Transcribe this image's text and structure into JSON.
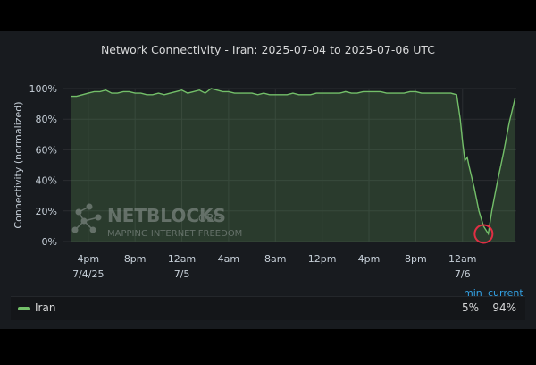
{
  "chart_data": {
    "type": "area",
    "title": "Network Connectivity - Iran: 2025-07-04 to 2025-07-06 UTC",
    "xlabel": "",
    "ylabel": "Connectivity (normalized)",
    "x_tick_labels": [
      [
        "4pm",
        "7/4/25"
      ],
      [
        "8pm",
        ""
      ],
      [
        "12am",
        "7/5"
      ],
      [
        "4am",
        ""
      ],
      [
        "8am",
        ""
      ],
      [
        "12pm",
        ""
      ],
      [
        "4pm",
        ""
      ],
      [
        "8pm",
        ""
      ],
      [
        "12am",
        "7/6"
      ]
    ],
    "y_tick_labels": [
      "0%",
      "20%",
      "40%",
      "60%",
      "80%",
      "100%"
    ],
    "ylim": [
      0,
      100
    ],
    "grid": true,
    "series": [
      {
        "name": "Iran",
        "color": "#73bf69",
        "x_hours": [
          -1.5,
          -1,
          -0.5,
          0,
          0.5,
          1,
          1.5,
          2,
          2.5,
          3,
          3.5,
          4,
          4.5,
          5,
          5.5,
          6,
          6.5,
          7,
          7.5,
          8,
          8.5,
          9,
          9.5,
          10,
          10.5,
          11,
          11.5,
          12,
          12.5,
          13,
          13.5,
          14,
          14.5,
          15,
          15.5,
          16,
          16.5,
          17,
          17.5,
          18,
          18.5,
          19,
          19.5,
          20,
          20.5,
          21,
          21.5,
          22,
          22.5,
          23,
          23.5,
          24,
          24.5,
          25,
          25.5,
          26,
          26.5,
          27,
          27.5,
          28,
          28.5,
          29,
          29.5,
          30,
          30.5,
          31,
          31.5,
          31.8,
          32.0,
          32.2,
          32.4,
          32.6,
          33.0,
          33.4,
          33.8,
          34.2,
          34.5,
          35.0,
          35.5,
          36.0,
          36.5
        ],
        "values": [
          95,
          95,
          96,
          97,
          98,
          98,
          99,
          97,
          97,
          98,
          98,
          97,
          97,
          96,
          96,
          97,
          96,
          97,
          98,
          99,
          97,
          98,
          99,
          97,
          100,
          99,
          98,
          98,
          97,
          97,
          97,
          97,
          96,
          97,
          96,
          96,
          96,
          96,
          97,
          96,
          96,
          96,
          97,
          97,
          97,
          97,
          97,
          98,
          97,
          97,
          98,
          98,
          98,
          98,
          97,
          97,
          97,
          97,
          98,
          98,
          97,
          97,
          97,
          97,
          97,
          97,
          96,
          80,
          65,
          53,
          55,
          48,
          35,
          20,
          10,
          5,
          20,
          40,
          58,
          78,
          94
        ]
      }
    ]
  },
  "watermark": {
    "brand": "NETBLOCKS",
    "suffix": ".ORG",
    "tagline": "MAPPING INTERNET FREEDOM"
  },
  "legend": {
    "headers": {
      "min": "min",
      "current": "current"
    },
    "items": [
      {
        "name": "Iran",
        "min": "5%",
        "current": "94%",
        "color": "#73bf69"
      }
    ]
  },
  "highlight": {
    "x_hours": 33.8,
    "y_value": 5,
    "color": "#e02f44"
  }
}
